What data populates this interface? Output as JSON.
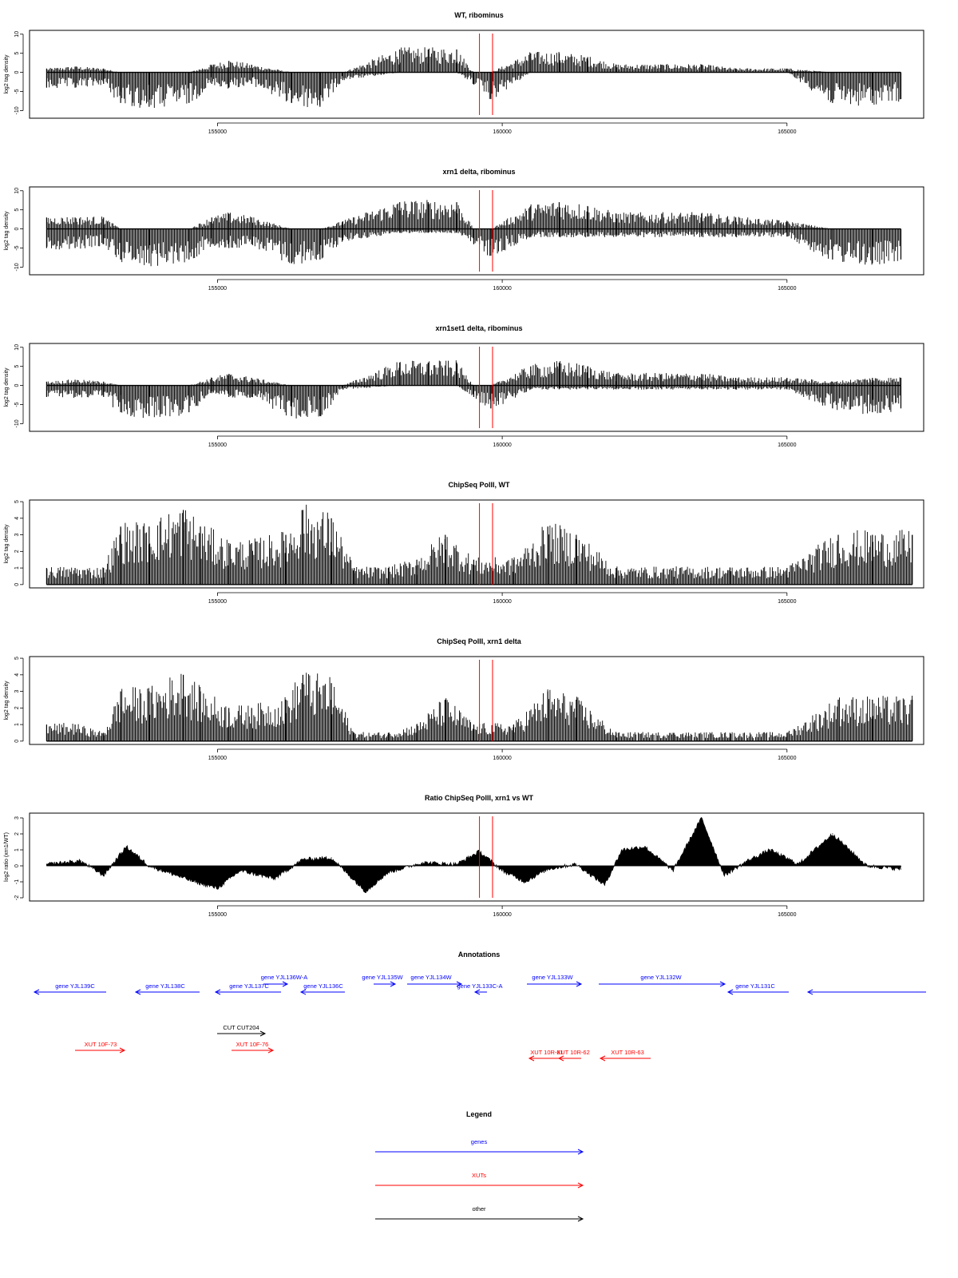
{
  "chart_data": [
    {
      "type": "bar",
      "title": "WT, ribominus",
      "xlabel": "",
      "ylabel": "log2 tag density",
      "xlim": [
        151700,
        167400
      ],
      "ylim": [
        -12,
        11
      ],
      "yticks": [
        -10,
        -5,
        0,
        5,
        10
      ],
      "xticks": [
        155000,
        160000,
        165000
      ],
      "markers": [
        159600,
        159830
      ],
      "x": [
        152000,
        152500,
        153000,
        153300,
        153800,
        154500,
        154900,
        155200,
        155600,
        156300,
        156800,
        157200,
        158200,
        158700,
        159200,
        159500,
        159800,
        160500,
        161000,
        161500,
        162000,
        162800,
        163500,
        164100,
        165000,
        165800,
        166500,
        167000
      ],
      "series": [
        {
          "values": [
            1,
            1.5,
            1,
            0,
            0,
            0,
            2,
            3,
            2,
            0,
            0,
            0,
            6,
            6,
            6,
            0,
            0,
            5,
            5,
            4,
            2,
            2,
            2,
            1,
            1,
            0,
            0,
            0
          ]
        },
        {
          "values": [
            -4,
            -4,
            -3,
            -8,
            -9,
            -8,
            -3,
            -4,
            -3,
            -8,
            -9,
            -2,
            0,
            0,
            0,
            -3,
            -7,
            0,
            0,
            0,
            0,
            0,
            0,
            0,
            0,
            -8,
            -8,
            -7
          ]
        }
      ]
    },
    {
      "type": "bar",
      "title": "xrn1 delta, ribominus",
      "xlabel": "",
      "ylabel": "log2 tag density",
      "xlim": [
        151700,
        167400
      ],
      "ylim": [
        -12,
        11
      ],
      "yticks": [
        -10,
        -5,
        0,
        5,
        10
      ],
      "xticks": [
        155000,
        160000,
        165000
      ],
      "markers": [
        159600,
        159830
      ],
      "x": [
        152000,
        152500,
        153000,
        153300,
        153800,
        154500,
        154900,
        155200,
        155600,
        156300,
        156800,
        157200,
        158200,
        158700,
        159200,
        159500,
        159800,
        160500,
        161000,
        161500,
        162000,
        162800,
        163500,
        164100,
        165000,
        165800,
        166500,
        167000
      ],
      "series": [
        {
          "values": [
            3,
            3,
            3,
            0,
            0,
            0,
            3,
            4,
            3,
            0,
            0,
            2,
            7,
            7,
            7,
            0,
            0,
            6,
            7,
            6,
            4,
            4,
            4,
            3,
            2,
            0,
            0,
            0
          ]
        },
        {
          "values": [
            -5,
            -5,
            -4,
            -8,
            -9,
            -8,
            -4,
            -5,
            -4,
            -9,
            -8,
            -3,
            -1,
            -1,
            -1,
            -4,
            -7,
            -2,
            -2,
            -2,
            -2,
            -2,
            -2,
            -2,
            -2,
            -8,
            -9,
            -8
          ]
        }
      ]
    },
    {
      "type": "bar",
      "title": "xrn1set1 delta, ribominus",
      "xlabel": "",
      "ylabel": "log2 tag density",
      "xlim": [
        151700,
        167400
      ],
      "ylim": [
        -12,
        11
      ],
      "yticks": [
        -10,
        -5,
        0,
        5,
        10
      ],
      "xticks": [
        155000,
        160000,
        165000
      ],
      "markers": [
        159600,
        159830
      ],
      "x": [
        152000,
        152500,
        153000,
        153300,
        153800,
        154500,
        154900,
        155200,
        155600,
        156300,
        156800,
        157200,
        158200,
        158700,
        159200,
        159500,
        159800,
        160500,
        161000,
        161500,
        162000,
        162800,
        163500,
        164100,
        165000,
        165800,
        166500,
        167000
      ],
      "series": [
        {
          "values": [
            1,
            1.5,
            1,
            0,
            0,
            0,
            2,
            3,
            2,
            0,
            0,
            0,
            6,
            6,
            6,
            0,
            0,
            5,
            6,
            5,
            3,
            3,
            3,
            2,
            2,
            1,
            2,
            2
          ]
        },
        {
          "values": [
            -3,
            -3,
            -3,
            -7,
            -8,
            -7,
            -2,
            -3,
            -3,
            -8,
            -8,
            -1,
            0,
            0,
            0,
            -3,
            -6,
            -1,
            -1,
            -1,
            -1,
            -1,
            -1,
            -1,
            -1,
            -6,
            -7,
            -6
          ]
        }
      ]
    },
    {
      "type": "bar",
      "title": "ChipSeq PolII, WT",
      "xlabel": "",
      "ylabel": "log2 tag density",
      "xlim": [
        151700,
        167400
      ],
      "ylim": [
        -0.2,
        5.1
      ],
      "yticks": [
        0,
        1,
        2,
        3,
        4,
        5
      ],
      "xticks": [
        155000,
        160000,
        165000
      ],
      "markers": [
        159600,
        159830
      ],
      "x": [
        152000,
        152500,
        153000,
        153300,
        153800,
        154400,
        154700,
        155200,
        155600,
        156200,
        156500,
        157000,
        157400,
        158000,
        158500,
        159000,
        159500,
        160200,
        160800,
        161300,
        162000,
        163000,
        164000,
        165000,
        165900,
        166500,
        167200
      ],
      "series": [
        {
          "values": [
            1,
            1,
            1,
            3.5,
            3.5,
            4.5,
            3.5,
            2.5,
            2.5,
            3,
            4.5,
            4,
            1,
            1,
            1.5,
            3,
            1.5,
            1.5,
            3.5,
            3,
            1,
            1,
            1,
            1,
            3,
            3,
            3
          ]
        }
      ]
    },
    {
      "type": "bar",
      "title": "ChipSeq PolII, xrn1 delta",
      "xlabel": "",
      "ylabel": "log2 tag density",
      "xlim": [
        151700,
        167400
      ],
      "ylim": [
        -0.2,
        5.1
      ],
      "yticks": [
        0,
        1,
        2,
        3,
        4,
        5
      ],
      "xticks": [
        155000,
        160000,
        165000
      ],
      "markers": [
        159600,
        159830
      ],
      "x": [
        152000,
        152500,
        153000,
        153300,
        153800,
        154400,
        154700,
        155200,
        155600,
        156200,
        156500,
        157000,
        157400,
        158000,
        158500,
        159000,
        159500,
        160200,
        160800,
        161300,
        162000,
        163000,
        164000,
        165000,
        165900,
        166500,
        167200
      ],
      "series": [
        {
          "values": [
            1,
            1,
            0.5,
            3,
            3,
            4,
            3,
            2,
            2,
            2.5,
            4,
            3.5,
            0.5,
            0.5,
            1,
            2.5,
            1,
            1,
            3,
            2.5,
            0.5,
            0.5,
            0.5,
            0.5,
            2.5,
            2.5,
            2.5
          ]
        }
      ]
    },
    {
      "type": "area",
      "title": "Ratio ChipSeq PolII, xrn1 vs WT",
      "xlabel": "",
      "ylabel": "log2 ratio (xrn1/WT)",
      "xlim": [
        151700,
        167400
      ],
      "ylim": [
        -2.2,
        3.3
      ],
      "yticks": [
        -2,
        -1,
        0,
        1,
        2,
        3
      ],
      "xticks": [
        155000,
        160000,
        165000
      ],
      "markers": [
        159600,
        159830
      ],
      "x": [
        152000,
        152600,
        153000,
        153400,
        153800,
        154600,
        155000,
        155400,
        156000,
        156500,
        157000,
        157600,
        158000,
        158600,
        159200,
        159600,
        160000,
        160400,
        160800,
        161300,
        161800,
        162100,
        162500,
        163000,
        163500,
        163900,
        164300,
        164700,
        165200,
        165800,
        166400,
        167000
      ],
      "series": [
        {
          "values": [
            0.1,
            0.3,
            -0.6,
            1.2,
            0,
            -1,
            -1.4,
            -0.3,
            -0.8,
            0.4,
            0.5,
            -1.6,
            -0.4,
            0.2,
            0.1,
            0.9,
            -0.3,
            -1,
            -0.2,
            0.1,
            -1.2,
            1,
            1.2,
            -0.3,
            3,
            -0.6,
            0.3,
            1,
            0.1,
            2,
            0,
            -0.2
          ]
        }
      ]
    }
  ],
  "annotations": {
    "title": "Annotations",
    "genes": [
      {
        "label": "gene YJL139C"
      },
      {
        "label": "gene YJL138C"
      },
      {
        "label": "gene YJL137C"
      },
      {
        "label": "gene YJL136W-A"
      },
      {
        "label": "gene YJL136C"
      },
      {
        "label": "gene YJL135W"
      },
      {
        "label": "gene YJL134W"
      },
      {
        "label": "gene YJL133C-A"
      },
      {
        "label": "gene YJL133W"
      },
      {
        "label": "gene YJL132W"
      },
      {
        "label": "gene YJL131C"
      }
    ],
    "other": [
      {
        "label": "CUT CUT204"
      }
    ],
    "xuts": [
      {
        "label": "XUT 10F-73"
      },
      {
        "label": "XUT 10F-76"
      },
      {
        "label": "XUT 10R-61"
      },
      {
        "label": "XUT 10R-62"
      },
      {
        "label": "XUT 10R-63"
      }
    ]
  },
  "legend": {
    "title": "Legend",
    "items": [
      {
        "label": "genes",
        "color": "#0000ff"
      },
      {
        "label": "XUTs",
        "color": "#ff0000"
      },
      {
        "label": "other",
        "color": "#000000"
      }
    ]
  },
  "colors": {
    "marker": "#ff0000",
    "gene": "#0000ff",
    "xut": "#ff0000",
    "other": "#000000",
    "bar": "#000000"
  }
}
